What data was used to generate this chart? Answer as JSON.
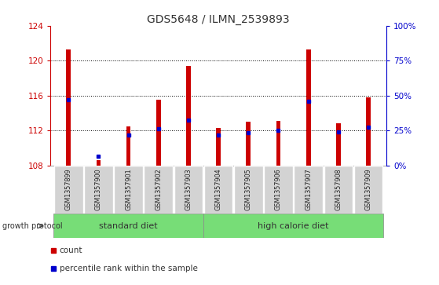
{
  "title": "GDS5648 / ILMN_2539893",
  "samples": [
    "GSM1357899",
    "GSM1357900",
    "GSM1357901",
    "GSM1357902",
    "GSM1357903",
    "GSM1357904",
    "GSM1357905",
    "GSM1357906",
    "GSM1357907",
    "GSM1357908",
    "GSM1357909"
  ],
  "count_values": [
    121.3,
    108.6,
    112.5,
    115.5,
    119.4,
    112.3,
    113.0,
    113.1,
    121.3,
    112.8,
    115.8
  ],
  "percentile_values": [
    115.5,
    109.0,
    111.5,
    112.2,
    113.2,
    111.5,
    111.7,
    112.0,
    115.3,
    111.8,
    112.4
  ],
  "ymin": 108,
  "ymax": 124,
  "yticks": [
    108,
    112,
    116,
    120,
    124
  ],
  "right_yticks": [
    0,
    25,
    50,
    75,
    100
  ],
  "bar_color": "#cc0000",
  "blue_color": "#0000cc",
  "base": 108,
  "standard_diet_label": "standard diet",
  "high_calorie_label": "high calorie diet",
  "growth_protocol_label": "growth protocol",
  "legend_count_label": "count",
  "legend_percentile_label": "percentile rank within the sample",
  "ytick_color": "#cc0000",
  "right_ytick_color": "#0000cc",
  "label_box_color": "#d3d3d3",
  "green_color": "#77dd77",
  "bar_width": 0.15
}
